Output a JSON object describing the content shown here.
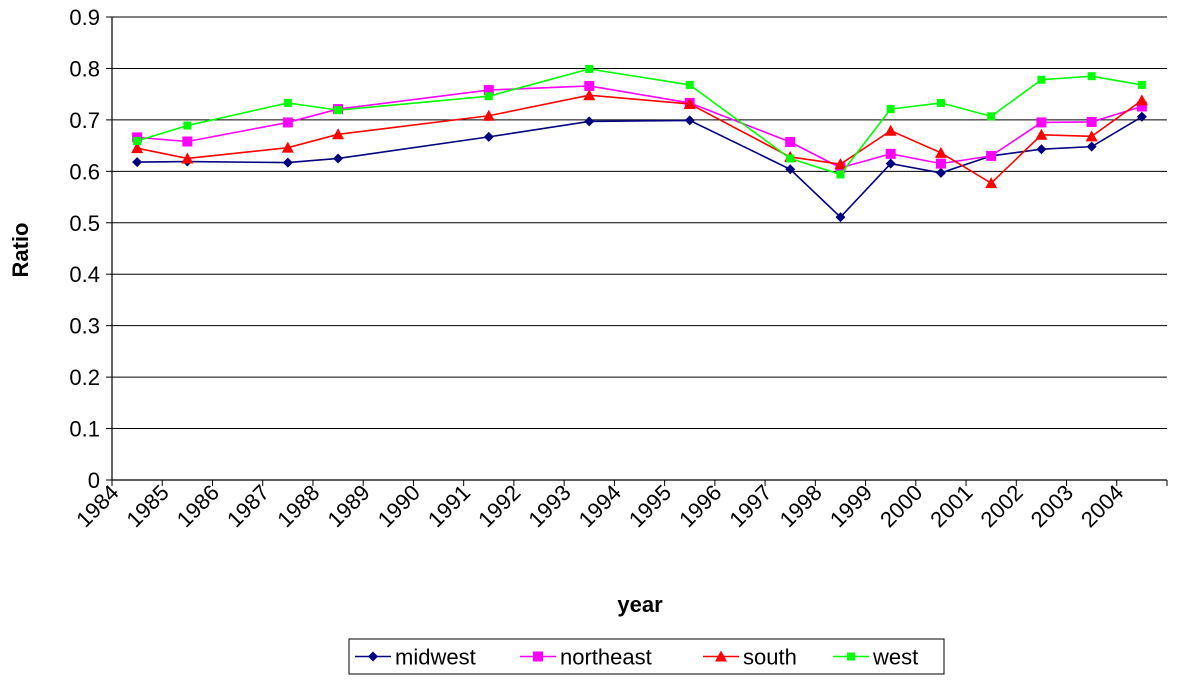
{
  "chart_data": {
    "type": "line",
    "title": "",
    "xlabel": "year",
    "ylabel": "Ratio",
    "ylim": [
      0,
      0.9
    ],
    "yticks": [
      "0",
      "0.1",
      "0.2",
      "0.3",
      "0.4",
      "0.5",
      "0.6",
      "0.7",
      "0.8",
      "0.9"
    ],
    "categories": [
      "1984",
      "1985",
      "1986",
      "1987",
      "1988",
      "1989",
      "1990",
      "1991",
      "1992",
      "1993",
      "1994",
      "1995",
      "1996",
      "1997",
      "1998",
      "1999",
      "2000",
      "2001",
      "2002",
      "2003",
      "2004"
    ],
    "grid": "horizontal",
    "legend_position": "bottom",
    "series": [
      {
        "name": "midwest",
        "color": "#000080",
        "marker": "diamond",
        "x": [
          1984.5,
          1985.5,
          1987.5,
          1988.5,
          1991.5,
          1993.5,
          1995.5,
          1997.5,
          1998.5,
          1999.5,
          2000.5,
          2001.5,
          2002.5,
          2003.5,
          2004.5
        ],
        "values": [
          0.618,
          0.619,
          0.617,
          0.625,
          0.667,
          0.697,
          0.699,
          0.604,
          0.511,
          0.615,
          0.597,
          0.63,
          0.643,
          0.648,
          0.706
        ]
      },
      {
        "name": "northeast",
        "color": "#FF00FF",
        "marker": "square",
        "x": [
          1984.5,
          1985.5,
          1987.5,
          1988.5,
          1991.5,
          1993.5,
          1995.5,
          1997.5,
          1998.5,
          1999.5,
          2000.5,
          2001.5,
          2002.5,
          2003.5,
          2004.5
        ],
        "values": [
          0.666,
          0.658,
          0.695,
          0.721,
          0.758,
          0.766,
          0.733,
          0.657,
          0.607,
          0.634,
          0.615,
          0.63,
          0.695,
          0.696,
          0.726
        ]
      },
      {
        "name": "south",
        "color": "#FF0000",
        "marker": "triangle",
        "x": [
          1984.5,
          1985.5,
          1987.5,
          1988.5,
          1991.5,
          1993.5,
          1995.5,
          1997.5,
          1998.5,
          1999.5,
          2000.5,
          2001.5,
          2002.5,
          2003.5,
          2004.5
        ],
        "values": [
          0.645,
          0.625,
          0.646,
          0.672,
          0.708,
          0.748,
          0.731,
          0.628,
          0.614,
          0.679,
          0.636,
          0.577,
          0.671,
          0.668,
          0.738
        ]
      },
      {
        "name": "west",
        "color": "#00FF00",
        "marker": "square-small",
        "x": [
          1984.5,
          1985.5,
          1987.5,
          1988.5,
          1991.5,
          1993.5,
          1995.5,
          1997.5,
          1998.5,
          1999.5,
          2000.5,
          2001.5,
          2002.5,
          2003.5,
          2004.5
        ],
        "values": [
          0.659,
          0.689,
          0.733,
          0.719,
          0.746,
          0.799,
          0.768,
          0.625,
          0.594,
          0.721,
          0.733,
          0.707,
          0.778,
          0.785,
          0.768
        ]
      }
    ]
  }
}
